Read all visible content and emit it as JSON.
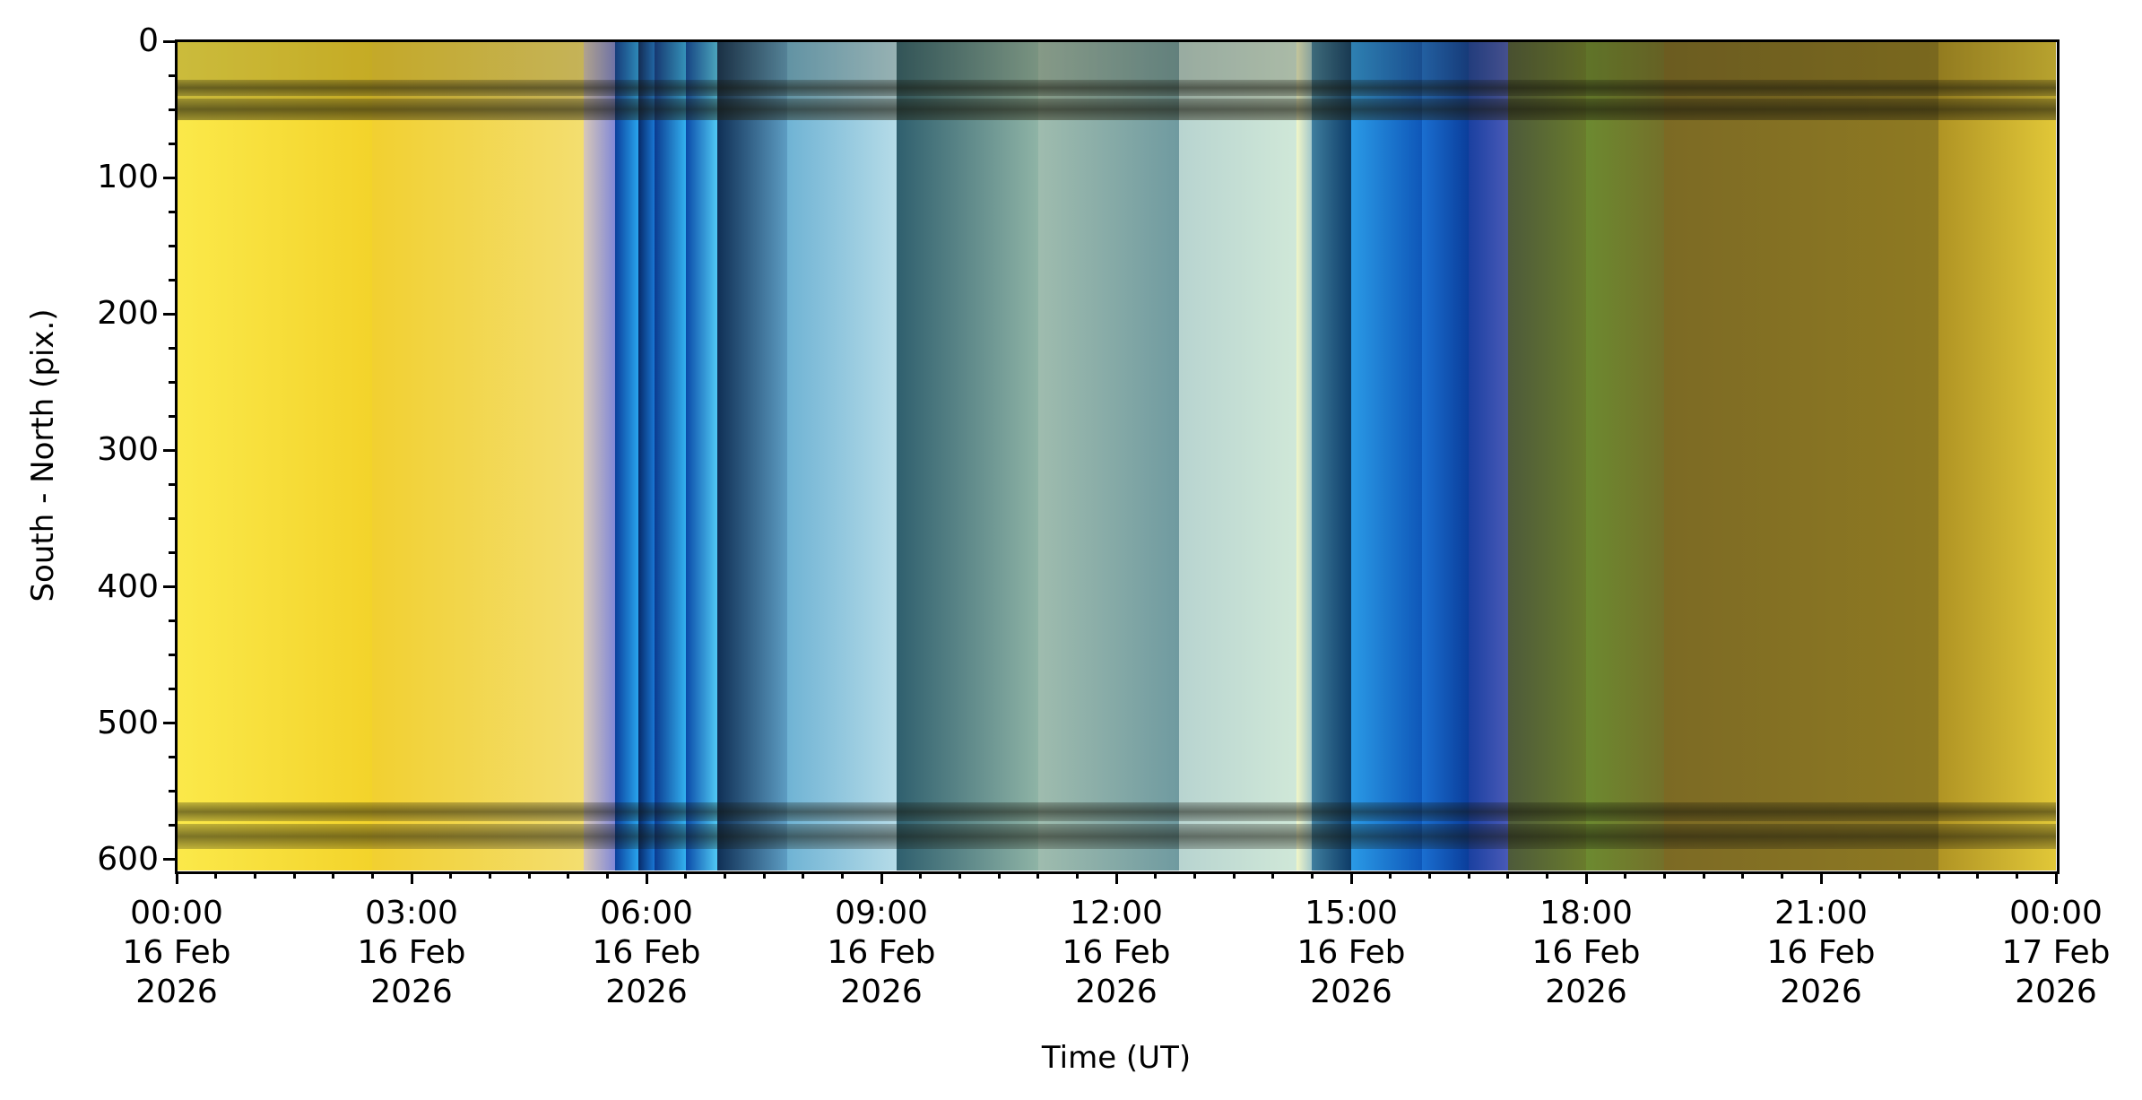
{
  "chart_data": {
    "type": "heatmap",
    "title": "",
    "xlabel": "Time (UT)",
    "ylabel": "South - North (pix.)",
    "xlim_hours": [
      0,
      24
    ],
    "ylim": [
      0,
      608
    ],
    "y_inverted": true,
    "yticks": [
      "0",
      "100",
      "200",
      "300",
      "400",
      "500",
      "600"
    ],
    "ytick_values": [
      0,
      100,
      200,
      300,
      400,
      500,
      600
    ],
    "xticks": [
      {
        "time": "00:00",
        "date": "16 Feb",
        "year": "2026",
        "hour": 0
      },
      {
        "time": "03:00",
        "date": "16 Feb",
        "year": "2026",
        "hour": 3
      },
      {
        "time": "06:00",
        "date": "16 Feb",
        "year": "2026",
        "hour": 6
      },
      {
        "time": "09:00",
        "date": "16 Feb",
        "year": "2026",
        "hour": 9
      },
      {
        "time": "12:00",
        "date": "16 Feb",
        "year": "2026",
        "hour": 12
      },
      {
        "time": "15:00",
        "date": "16 Feb",
        "year": "2026",
        "hour": 15
      },
      {
        "time": "18:00",
        "date": "16 Feb",
        "year": "2026",
        "hour": 18
      },
      {
        "time": "21:00",
        "date": "16 Feb",
        "year": "2026",
        "hour": 21
      },
      {
        "time": "00:00",
        "date": "17 Feb",
        "year": "2026",
        "hour": 24
      }
    ],
    "bands": [
      {
        "start": 0,
        "end": 2.5,
        "from": "#fbe94a",
        "to": "#f3d32a"
      },
      {
        "start": 2.5,
        "end": 5.2,
        "from": "#f2d030",
        "to": "#f3de70"
      },
      {
        "start": 5.2,
        "end": 5.6,
        "from": "#d8c8b8",
        "to": "#7e86d8"
      },
      {
        "start": 5.6,
        "end": 5.9,
        "from": "#0a3f9c",
        "to": "#2aa8f0"
      },
      {
        "start": 5.9,
        "end": 6.1,
        "from": "#062a6a",
        "to": "#1a7ad8"
      },
      {
        "start": 6.1,
        "end": 6.5,
        "from": "#0a3a90",
        "to": "#34b4f2"
      },
      {
        "start": 6.5,
        "end": 6.9,
        "from": "#0a4aa8",
        "to": "#52cdf6"
      },
      {
        "start": 6.9,
        "end": 7.8,
        "from": "#0f2f55",
        "to": "#5e9ec4"
      },
      {
        "start": 7.8,
        "end": 9.2,
        "from": "#6fb3d4",
        "to": "#b6dce8"
      },
      {
        "start": 9.2,
        "end": 11.0,
        "from": "#2f5f6e",
        "to": "#8fb4a6"
      },
      {
        "start": 11.0,
        "end": 12.8,
        "from": "#9fbcae",
        "to": "#6f9aa0"
      },
      {
        "start": 12.8,
        "end": 14.3,
        "from": "#b8d4d0",
        "to": "#d0e8d8"
      },
      {
        "start": 14.3,
        "end": 14.5,
        "from": "#f2f6c8",
        "to": "#9fc6cc"
      },
      {
        "start": 14.5,
        "end": 15.0,
        "from": "#3f7e9e",
        "to": "#0c3a66"
      },
      {
        "start": 15.0,
        "end": 15.9,
        "from": "#2a9ae6",
        "to": "#0e56b8"
      },
      {
        "start": 15.9,
        "end": 16.5,
        "from": "#1a6ed0",
        "to": "#0a3d9a"
      },
      {
        "start": 16.5,
        "end": 17.0,
        "from": "#1a40a0",
        "to": "#4a5ab8"
      },
      {
        "start": 17.0,
        "end": 18.0,
        "from": "#4d5a3a",
        "to": "#6a7c2c"
      },
      {
        "start": 18.0,
        "end": 19.0,
        "from": "#6c8a30",
        "to": "#74702a"
      },
      {
        "start": 19.0,
        "end": 22.5,
        "from": "#7c6a24",
        "to": "#8f7a22"
      },
      {
        "start": 22.5,
        "end": 24,
        "from": "#b09424",
        "to": "#e2c838"
      }
    ],
    "dark_rows": [
      [
        28,
        40
      ],
      [
        42,
        58
      ],
      [
        558,
        572
      ],
      [
        574,
        592
      ]
    ]
  }
}
